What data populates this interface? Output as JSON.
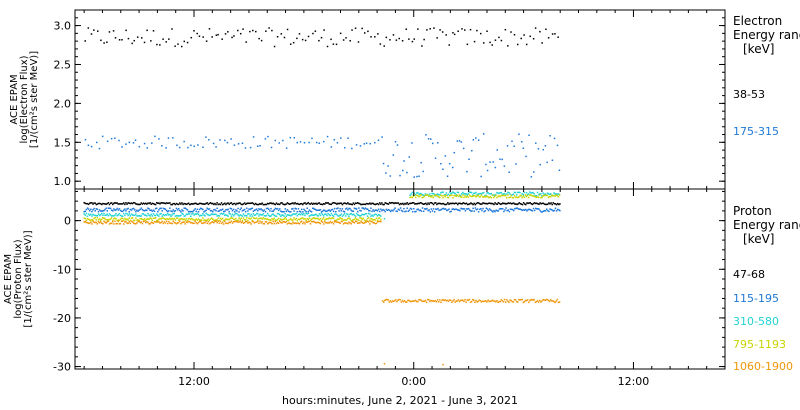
{
  "chart_data": [
    {
      "type": "scatter",
      "panel": "electron",
      "ylabel_lines": [
        "ACE EPAM",
        "log(Electron Flux)",
        "[1/(cm²s ster MeV)]"
      ],
      "ylim": [
        0.9,
        3.2
      ],
      "yticks": [
        1.0,
        1.5,
        2.0,
        2.5,
        3.0
      ],
      "ytick_labels": [
        "1.0",
        "1.5",
        "2.0",
        "2.5",
        "3.0"
      ],
      "legend_title_lines": [
        "Electron",
        "Energy ranges",
        "[keV]"
      ],
      "series": [
        {
          "name": "38-53",
          "color": "#000000",
          "x_start": 6.0,
          "x_end": 32.0,
          "base": 2.85,
          "spread": 0.12,
          "step": 0.17
        },
        {
          "name": "175-315",
          "color": "#1e78d8",
          "x_start": 6.0,
          "x_end": 22.3,
          "base": 1.5,
          "spread": 0.08,
          "step": 0.2,
          "x_start2": 22.3,
          "x_end2": 32.0,
          "base2": 1.33,
          "spread2": 0.28,
          "step2": 0.13
        }
      ]
    },
    {
      "type": "scatter",
      "panel": "proton",
      "ylabel_lines": [
        "ACE EPAM",
        "log(Proton Flux)",
        "[1/(cm²s ster MeV)]"
      ],
      "ylim": [
        -30.5,
        6.5
      ],
      "yticks": [
        -30,
        -20,
        -10,
        0
      ],
      "ytick_labels": [
        "-30",
        "-20",
        "-10",
        "0"
      ],
      "legend_title_lines": [
        "Proton",
        "Energy ranges",
        "[keV]"
      ],
      "series": [
        {
          "name": "47-68",
          "color": "#000000",
          "segments": [
            [
              6.0,
              32.0,
              3.5,
              0.2
            ]
          ]
        },
        {
          "name": "115-195",
          "color": "#1e78d8",
          "segments": [
            [
              6.0,
              32.0,
              2.2,
              0.4
            ]
          ]
        },
        {
          "name": "310-580",
          "color": "#22d3d3",
          "segments": [
            [
              6.0,
              22.2,
              1.2,
              0.3
            ],
            [
              23.8,
              32.0,
              5.5,
              0.4
            ]
          ]
        },
        {
          "name": "795-1193",
          "color": "#c8d400",
          "segments": [
            [
              6.0,
              22.2,
              0.3,
              0.3
            ],
            [
              23.8,
              32.0,
              5.0,
              0.3
            ]
          ]
        },
        {
          "name": "1060-1900",
          "color": "#f0960a",
          "segments": [
            [
              6.0,
              22.2,
              -0.4,
              0.3
            ],
            [
              22.3,
              32.0,
              -16.5,
              0.3
            ]
          ]
        }
      ],
      "outliers": [
        {
          "x": 22.4,
          "y": -29.4,
          "color": "#f0960a"
        },
        {
          "x": 25.6,
          "y": -29.6,
          "color": "#f0960a"
        },
        {
          "x": 22.4,
          "y": 0.4,
          "color": "#22d3d3"
        }
      ]
    }
  ],
  "x_axis": {
    "xlim": [
      5.5,
      41.0
    ],
    "ticks": [
      {
        "x": 12,
        "label": "12:00"
      },
      {
        "x": 24,
        "label": "0:00"
      },
      {
        "x": 36,
        "label": "12:00"
      }
    ],
    "minor_step": 1,
    "title": "hours:minutes, June  2, 2021 - June  3, 2021"
  }
}
